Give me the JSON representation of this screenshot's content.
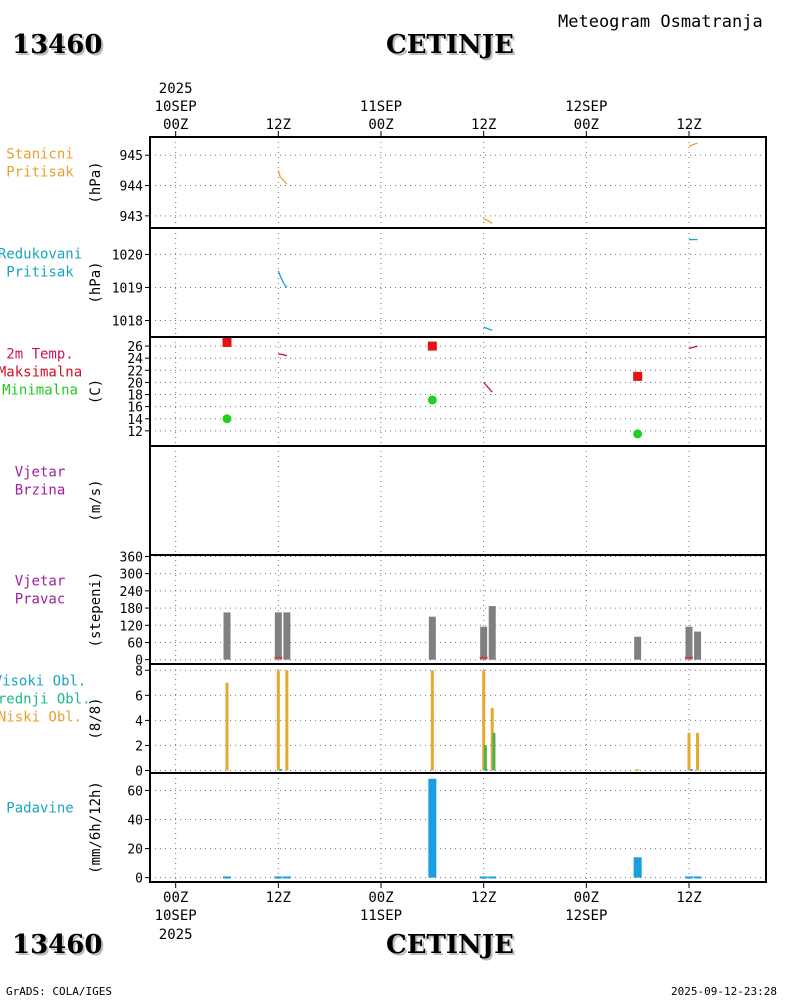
{
  "header": {
    "station_id": "13460",
    "station_name": "CETINJE",
    "product": "Meteogram Osmatranja"
  },
  "footer": {
    "station_id": "13460",
    "station_name": "CETINJE",
    "credit": "GrADS: COLA/IGES",
    "timestamp": "2025-09-12-23:28"
  },
  "time_axis": {
    "year": "2025",
    "ticks": [
      {
        "h": 0,
        "label": "00Z",
        "date": "10SEP",
        "year": "2025"
      },
      {
        "h": 12,
        "label": "12Z",
        "date": "",
        "year": ""
      },
      {
        "h": 24,
        "label": "00Z",
        "date": "11SEP",
        "year": ""
      },
      {
        "h": 36,
        "label": "12Z",
        "date": "",
        "year": ""
      },
      {
        "h": 48,
        "label": "00Z",
        "date": "12SEP",
        "year": ""
      },
      {
        "h": 60,
        "label": "12Z",
        "date": "",
        "year": ""
      }
    ],
    "range_hours": [
      -3,
      69
    ]
  },
  "chart_data": [
    {
      "id": "station_pressure",
      "type": "line",
      "labels": [
        {
          "text": "Stanicni",
          "color": "#e8a030"
        },
        {
          "text": "Pritisak",
          "color": "#e8a030"
        }
      ],
      "ylabel": "(hPa)",
      "ylim": [
        942.6,
        945.6
      ],
      "yticks": [
        943,
        944,
        945
      ],
      "series": [
        {
          "name": "Stanicni Pritisak",
          "color": "#e8a030",
          "segments": [
            [
              [
                12,
                944.5
              ],
              [
                12.2,
                944.3
              ],
              [
                12.5,
                944.2
              ],
              [
                13,
                944.05
              ]
            ],
            [
              [
                36,
                942.9
              ],
              [
                36.5,
                942.85
              ],
              [
                37,
                942.75
              ]
            ],
            [
              [
                60,
                945.3
              ],
              [
                60.5,
                945.35
              ],
              [
                61,
                945.4
              ]
            ]
          ]
        }
      ]
    },
    {
      "id": "reduced_pressure",
      "type": "line",
      "labels": [
        {
          "text": "Redukovani",
          "color": "#19a4c2"
        },
        {
          "text": "Pritisak",
          "color": "#19a4c2"
        }
      ],
      "ylabel": "(hPa)",
      "ylim": [
        1017.5,
        1020.8
      ],
      "yticks": [
        1018,
        1019,
        1020
      ],
      "series": [
        {
          "name": "Redukovani Pritisak",
          "color": "#19a4c2",
          "segments": [
            [
              [
                12,
                1019.5
              ],
              [
                12.3,
                1019.3
              ],
              [
                12.7,
                1019.1
              ],
              [
                13,
                1019.0
              ]
            ],
            [
              [
                36,
                1017.8
              ],
              [
                36.5,
                1017.75
              ],
              [
                37,
                1017.7
              ]
            ],
            [
              [
                60,
                1020.45
              ],
              [
                61,
                1020.45
              ]
            ]
          ]
        }
      ]
    },
    {
      "id": "temperature",
      "type": "line",
      "labels": [
        {
          "text": "2m Temp.",
          "color": "#d0105a"
        },
        {
          "text": "Maksimalna",
          "color": "#d01020"
        },
        {
          "text": "Minimalna",
          "color": "#20cc20"
        }
      ],
      "ylabel": "(C)",
      "ylim": [
        9.5,
        27.5
      ],
      "yticks": [
        12,
        14,
        16,
        18,
        20,
        22,
        24,
        26
      ],
      "series": [
        {
          "name": "2m Temp.",
          "color": "#c01060",
          "segments": [
            [
              [
                12,
                24.7
              ],
              [
                12.5,
                24.6
              ],
              [
                13,
                24.4
              ]
            ],
            [
              [
                36,
                20.0
              ],
              [
                36.5,
                19.2
              ],
              [
                37,
                18.4
              ]
            ],
            [
              [
                60,
                25.6
              ],
              [
                60.5,
                25.8
              ],
              [
                61,
                26.0
              ]
            ]
          ]
        }
      ],
      "max_points": {
        "name": "Maksimalna",
        "color": "#e81010",
        "points": [
          [
            6,
            26.6
          ],
          [
            30,
            26.0
          ],
          [
            54,
            21.0
          ]
        ]
      },
      "min_points": {
        "name": "Minimalna",
        "color": "#20d020",
        "points": [
          [
            6,
            14.0
          ],
          [
            30,
            17.1
          ],
          [
            54,
            11.5
          ]
        ]
      }
    },
    {
      "id": "wind_speed",
      "type": "line",
      "labels": [
        {
          "text": "Vjetar",
          "color": "#a020a0"
        },
        {
          "text": "Brzina",
          "color": "#a020a0"
        }
      ],
      "ylabel": "(m/s)",
      "ylim": [
        0,
        1
      ],
      "yticks": [],
      "series": []
    },
    {
      "id": "wind_direction",
      "type": "bar",
      "labels": [
        {
          "text": "Vjetar",
          "color": "#a020a0"
        },
        {
          "text": "Pravac",
          "color": "#a020a0"
        }
      ],
      "ylabel": "(stepeni)",
      "ylim": [
        -15,
        365
      ],
      "yticks": [
        0,
        60,
        120,
        180,
        240,
        300,
        360
      ],
      "series": [
        {
          "name": "Pravac",
          "color": "#808080",
          "bars": [
            [
              6,
              165
            ],
            [
              12,
              165
            ],
            [
              13,
              165
            ],
            [
              30,
              150
            ],
            [
              36,
              115
            ],
            [
              37,
              187
            ],
            [
              54,
              80
            ],
            [
              60,
              115
            ],
            [
              61,
              98
            ]
          ]
        }
      ],
      "markers": {
        "color": "#e03030",
        "x": [
          12,
          36,
          60
        ]
      }
    },
    {
      "id": "clouds",
      "type": "bar",
      "labels": [
        {
          "text": "Visoki Obl.",
          "color": "#19a4c2"
        },
        {
          "text": "Srednji Obl.",
          "color": "#20b890"
        },
        {
          "text": "Niski Obl.",
          "color": "#e8a030"
        }
      ],
      "ylabel": "(8/8)",
      "ylim": [
        -0.2,
        8.5
      ],
      "yticks": [
        0,
        2,
        4,
        6,
        8
      ],
      "series": [
        {
          "name": "Niski Obl.",
          "color": "#e8a830",
          "bars": [
            [
              6,
              7
            ],
            [
              12,
              8
            ],
            [
              13,
              8
            ],
            [
              30,
              8
            ],
            [
              36,
              8
            ],
            [
              37,
              5
            ],
            [
              54,
              0.1
            ],
            [
              60,
              3
            ],
            [
              61,
              3
            ]
          ]
        },
        {
          "name": "Srednji Obl.",
          "color": "#50b050",
          "bars": [
            [
              36.2,
              2
            ],
            [
              37.2,
              3
            ]
          ]
        },
        {
          "name": "Visoki Obl.",
          "color": "#19a4c2",
          "bars": [
            [
              12.3,
              0.1
            ],
            [
              36.3,
              0.1
            ],
            [
              60.3,
              0.1
            ]
          ]
        }
      ]
    },
    {
      "id": "precipitation",
      "type": "bar",
      "labels": [
        {
          "text": "Padavine",
          "color": "#19a4c2"
        }
      ],
      "ylabel": "(mm/6h/12h)",
      "ylim": [
        -3,
        72
      ],
      "yticks": [
        0,
        20,
        40,
        60
      ],
      "series": [
        {
          "name": "Padavine",
          "color": "#1a9ee0",
          "wide": [
            [
              30,
              68
            ],
            [
              54,
              14
            ]
          ],
          "thin": [
            [
              6,
              0.8
            ],
            [
              12,
              0.8
            ],
            [
              13,
              0.8
            ],
            [
              36,
              0.8
            ],
            [
              37,
              0.8
            ],
            [
              60,
              0.8
            ],
            [
              61,
              0.8
            ]
          ]
        }
      ]
    }
  ]
}
